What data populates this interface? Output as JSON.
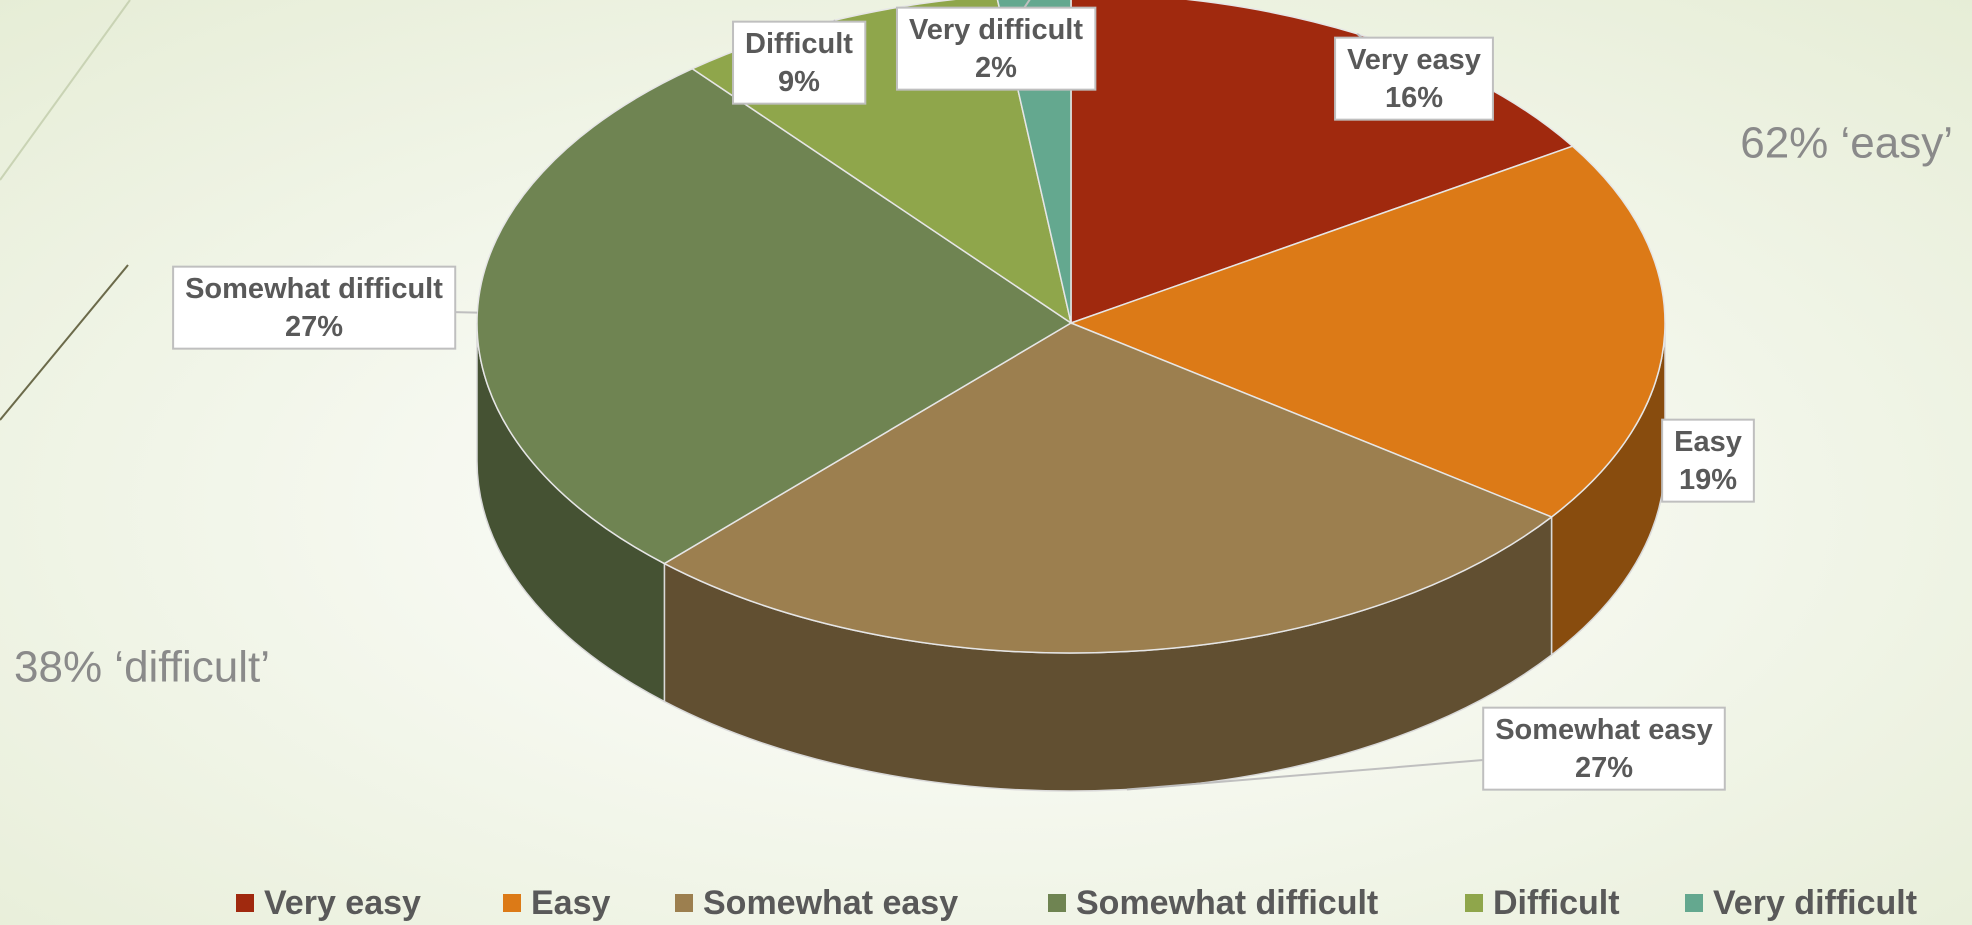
{
  "chart_data": {
    "type": "pie3d",
    "categories": [
      "Very easy",
      "Easy",
      "Somewhat easy",
      "Somewhat difficult",
      "Difficult",
      "Very difficult"
    ],
    "values": [
      16,
      19,
      27,
      27,
      9,
      2
    ],
    "value_labels": [
      "16%",
      "19%",
      "27%",
      "27%",
      "9%",
      "2%"
    ],
    "colors": [
      "#a0290e",
      "#dc7a17",
      "#9c7f4f",
      "#6f8452",
      "#8fa64b",
      "#64a88f"
    ],
    "annotations": [
      "62% ‘easy’",
      "38% ‘difficult’"
    ],
    "legend": "bottom"
  }
}
